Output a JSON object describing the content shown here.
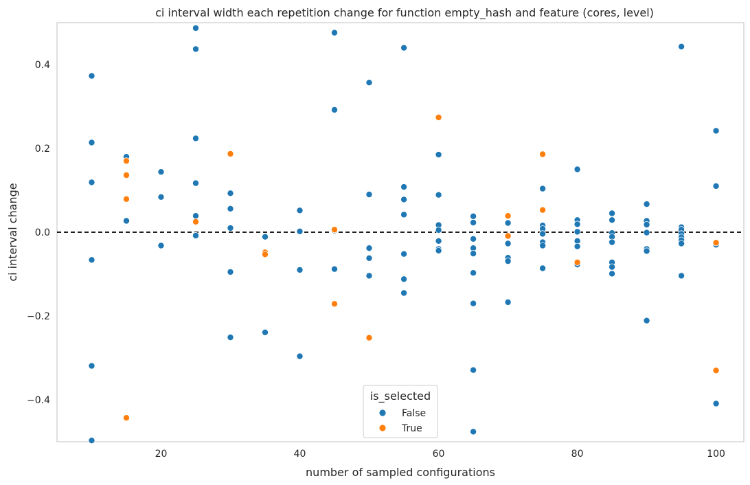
{
  "chart_data": {
    "type": "scatter",
    "title": "ci interval width each repetition change for function empty_hash and feature (cores, level)",
    "xlabel": "number of sampled configurations",
    "ylabel": "ci interval change",
    "xlim": [
      5,
      104
    ],
    "ylim": [
      -0.5,
      0.5
    ],
    "xticks": [
      20,
      40,
      60,
      80,
      100
    ],
    "yticks": [
      -0.4,
      -0.2,
      0.0,
      0.2,
      0.4
    ],
    "xtick_labels": [
      "20",
      "40",
      "60",
      "80",
      "100"
    ],
    "ytick_labels": [
      "−0.4",
      "−0.2",
      "0.0",
      "0.2",
      "0.4"
    ],
    "grid": false,
    "reference_line": {
      "y": 0.0,
      "style": "dashed",
      "color": "#000000"
    },
    "legend": {
      "title": "is_selected",
      "placement": "lower-center"
    },
    "series": [
      {
        "name": "False",
        "color": "#1f77b4",
        "points": [
          [
            10,
            0.373
          ],
          [
            10,
            0.214
          ],
          [
            10,
            0.119
          ],
          [
            10,
            -0.066
          ],
          [
            10,
            -0.319
          ],
          [
            10,
            -0.497
          ],
          [
            15,
            0.18
          ],
          [
            15,
            0.027
          ],
          [
            20,
            0.144
          ],
          [
            20,
            0.084
          ],
          [
            20,
            -0.032
          ],
          [
            25,
            0.487
          ],
          [
            25,
            0.437
          ],
          [
            25,
            0.224
          ],
          [
            25,
            0.117
          ],
          [
            25,
            0.039
          ],
          [
            25,
            -0.008
          ],
          [
            30,
            0.093
          ],
          [
            30,
            0.056
          ],
          [
            30,
            0.01
          ],
          [
            30,
            -0.095
          ],
          [
            30,
            -0.251
          ],
          [
            35,
            -0.011
          ],
          [
            35,
            -0.239
          ],
          [
            40,
            0.052
          ],
          [
            40,
            0.002
          ],
          [
            40,
            -0.09
          ],
          [
            40,
            -0.296
          ],
          [
            45,
            0.476
          ],
          [
            45,
            0.292
          ],
          [
            45,
            0.004
          ],
          [
            45,
            -0.088
          ],
          [
            50,
            0.357
          ],
          [
            50,
            0.09
          ],
          [
            50,
            -0.038
          ],
          [
            50,
            -0.062
          ],
          [
            50,
            -0.104
          ],
          [
            55,
            0.44
          ],
          [
            55,
            0.108
          ],
          [
            55,
            0.078
          ],
          [
            55,
            0.042
          ],
          [
            55,
            -0.052
          ],
          [
            55,
            -0.112
          ],
          [
            55,
            -0.145
          ],
          [
            60,
            0.185
          ],
          [
            60,
            0.089
          ],
          [
            60,
            0.017
          ],
          [
            60,
            0.005
          ],
          [
            60,
            -0.021
          ],
          [
            60,
            -0.04
          ],
          [
            60,
            -0.044
          ],
          [
            65,
            0.038
          ],
          [
            65,
            0.023
          ],
          [
            65,
            -0.016
          ],
          [
            65,
            -0.038
          ],
          [
            65,
            -0.051
          ],
          [
            65,
            -0.097
          ],
          [
            65,
            -0.17
          ],
          [
            65,
            -0.329
          ],
          [
            65,
            -0.476
          ],
          [
            70,
            0.022
          ],
          [
            70,
            -0.027
          ],
          [
            70,
            -0.061
          ],
          [
            70,
            -0.069
          ],
          [
            70,
            -0.167
          ],
          [
            75,
            0.104
          ],
          [
            75,
            0.016
          ],
          [
            75,
            0.008
          ],
          [
            75,
            -0.004
          ],
          [
            75,
            -0.024
          ],
          [
            75,
            -0.032
          ],
          [
            75,
            -0.086
          ],
          [
            80,
            0.15
          ],
          [
            80,
            0.029
          ],
          [
            80,
            0.019
          ],
          [
            80,
            0.001
          ],
          [
            80,
            -0.021
          ],
          [
            80,
            -0.034
          ],
          [
            80,
            -0.077
          ],
          [
            85,
            0.045
          ],
          [
            85,
            0.029
          ],
          [
            85,
            -0.002
          ],
          [
            85,
            -0.011
          ],
          [
            85,
            -0.024
          ],
          [
            85,
            -0.072
          ],
          [
            85,
            -0.083
          ],
          [
            85,
            -0.099
          ],
          [
            90,
            0.067
          ],
          [
            90,
            0.027
          ],
          [
            90,
            0.018
          ],
          [
            90,
            -0.001
          ],
          [
            90,
            -0.04
          ],
          [
            90,
            -0.045
          ],
          [
            90,
            -0.211
          ],
          [
            95,
            0.443
          ],
          [
            95,
            0.012
          ],
          [
            95,
            0.006
          ],
          [
            95,
            -0.004
          ],
          [
            95,
            -0.012
          ],
          [
            95,
            -0.019
          ],
          [
            95,
            -0.027
          ],
          [
            95,
            -0.104
          ],
          [
            100,
            0.242
          ],
          [
            100,
            0.11
          ],
          [
            100,
            -0.03
          ],
          [
            100,
            -0.409
          ]
        ]
      },
      {
        "name": "True",
        "color": "#ff7f0e",
        "points": [
          [
            15,
            0.17
          ],
          [
            15,
            0.136
          ],
          [
            15,
            0.079
          ],
          [
            15,
            -0.443
          ],
          [
            25,
            0.025
          ],
          [
            30,
            0.187
          ],
          [
            35,
            -0.048
          ],
          [
            35,
            -0.053
          ],
          [
            45,
            0.006
          ],
          [
            45,
            -0.171
          ],
          [
            50,
            -0.252
          ],
          [
            60,
            0.274
          ],
          [
            70,
            0.039
          ],
          [
            70,
            -0.009
          ],
          [
            75,
            0.186
          ],
          [
            75,
            0.053
          ],
          [
            80,
            -0.072
          ],
          [
            100,
            -0.025
          ],
          [
            100,
            -0.33
          ]
        ]
      }
    ]
  }
}
